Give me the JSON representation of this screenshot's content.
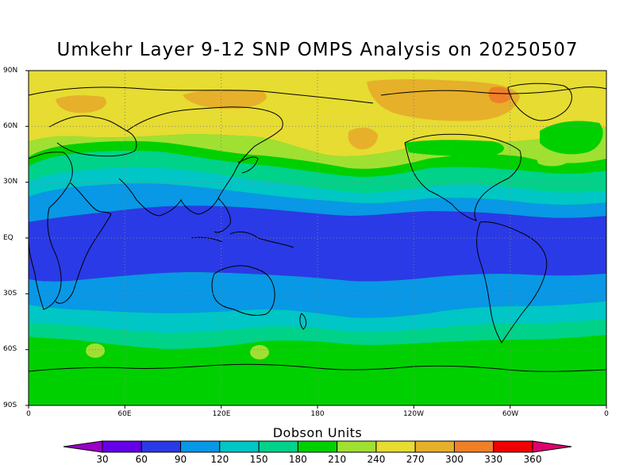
{
  "title": "Umkehr Layer 9-12 SNP OMPS Analysis on 20250507",
  "lat_labels": [
    "90N",
    "60N",
    "30N",
    "EQ",
    "30S",
    "60S",
    "90S"
  ],
  "lon_labels": [
    "0",
    "60E",
    "120E",
    "180",
    "120W",
    "60W",
    "0"
  ],
  "colorbar": {
    "title": "Dobson Units",
    "levels": [
      "30",
      "60",
      "90",
      "120",
      "150",
      "180",
      "210",
      "240",
      "270",
      "300",
      "330",
      "360"
    ],
    "colors": [
      "#9a00c8",
      "#6400e6",
      "#2a3ae6",
      "#0898e6",
      "#00c6c6",
      "#00d28a",
      "#00d000",
      "#a0e032",
      "#e6dc32",
      "#e6b02a",
      "#f08028",
      "#f00000",
      "#e0006e"
    ]
  },
  "chart_data": {
    "type": "heatmap",
    "title": "Umkehr Layer 9-12 SNP OMPS Analysis on 20250507",
    "units": "Dobson Units",
    "lon_range": [
      0,
      360
    ],
    "lat_range": [
      -90,
      90
    ],
    "grid": true,
    "zonal_band_values_du": [
      {
        "lat": 80,
        "value": 255
      },
      {
        "lat": 65,
        "value": 250
      },
      {
        "lat": 52,
        "value": 215
      },
      {
        "lat": 40,
        "value": 175
      },
      {
        "lat": 25,
        "value": 125
      },
      {
        "lat": 10,
        "value": 80
      },
      {
        "lat": 0,
        "value": 75
      },
      {
        "lat": -15,
        "value": 80
      },
      {
        "lat": -30,
        "value": 110
      },
      {
        "lat": -45,
        "value": 150
      },
      {
        "lat": -60,
        "value": 200
      },
      {
        "lat": -75,
        "value": 205
      }
    ]
  }
}
